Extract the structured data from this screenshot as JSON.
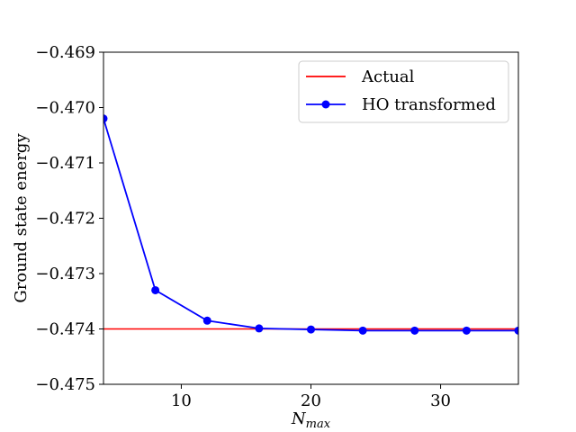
{
  "chart_data": {
    "type": "line",
    "title": "",
    "xlabel_main": "N",
    "xlabel_sub": "max",
    "ylabel": "Ground state energy",
    "xlim": [
      4,
      36
    ],
    "ylim": [
      -0.475,
      -0.469
    ],
    "xticks": [
      10,
      20,
      30
    ],
    "yticks": [
      -0.469,
      -0.47,
      -0.471,
      -0.472,
      -0.473,
      -0.474,
      -0.475
    ],
    "ytick_labels": [
      "−0.469",
      "−0.470",
      "−0.471",
      "−0.472",
      "−0.473",
      "−0.474",
      "−0.475"
    ],
    "grid": false,
    "legend_position": "top-right",
    "series": [
      {
        "name": "Actual",
        "color": "#ff0000",
        "marker": "none",
        "kind": "hline",
        "y": -0.474
      },
      {
        "name": "HO transformed",
        "color": "#0000ff",
        "marker": "circle",
        "kind": "line",
        "x": [
          4,
          8,
          12,
          16,
          20,
          24,
          28,
          32,
          36
        ],
        "y": [
          -0.4702,
          -0.4733,
          -0.47385,
          -0.47399,
          -0.47401,
          -0.47403,
          -0.47403,
          -0.47403,
          -0.47403
        ]
      }
    ]
  }
}
